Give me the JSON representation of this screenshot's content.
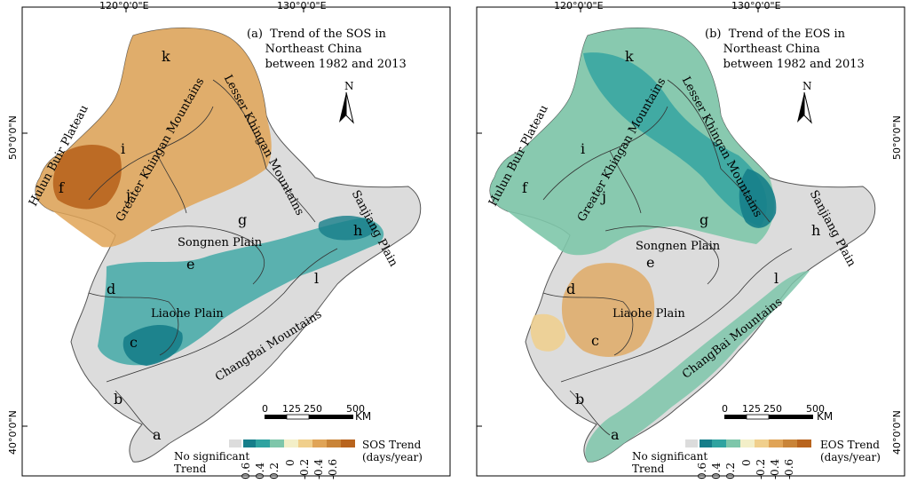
{
  "colors": {
    "no_trend": "#dcdcdc",
    "neg06": "#167e8a",
    "neg04": "#2fa3a0",
    "neg02": "#7ec6aa",
    "zero": "#f3efc8",
    "pos02": "#f0cf8c",
    "pos04": "#e0a457",
    "pos06": "#b8641e"
  },
  "panels": [
    {
      "title": "(a)  Trend of the SOS in\n     Northeast China\n     between 1982 and 2013",
      "variable": "SOS",
      "legend_title": "SOS Trend\n(days/year)",
      "legend_ticks": [
        "0.6",
        "0.4",
        "0.2",
        "0",
        "-0.2",
        "-0.4",
        "-0.6"
      ],
      "no_trend_label": "No significant\nTrend"
    },
    {
      "title": "(b)  Trend of the EOS in\n     Northeast China\n     between 1982 and 2013",
      "variable": "EOS",
      "legend_title": "EOS Trend\n(days/year)",
      "legend_ticks": [
        "0.6",
        "0.4",
        "0.2",
        "0",
        "-0.2",
        "-0.4",
        "-0.6"
      ],
      "no_trend_label": "No significant\nTrend"
    }
  ],
  "coords": {
    "lon_labels": [
      "120°0'0\"E",
      "130°0'0\"E"
    ],
    "lat_labels": [
      "50°0'0\"N",
      "40°0'0\"N"
    ]
  },
  "north_arrow": "N",
  "scale_bar": {
    "ticks": [
      "0",
      "125",
      "250",
      "500"
    ],
    "unit": "KM"
  },
  "regions": {
    "letters": [
      "a",
      "b",
      "c",
      "d",
      "e",
      "f",
      "g",
      "h",
      "i",
      "j",
      "k",
      "l"
    ],
    "hulun_buir": "Hulun Buir Plateau",
    "greater_khingan": "Greater Khingan Mountains",
    "lesser_khingan": "Lesser Khingan Mountains",
    "sanjiang": "Sanjiang Plain",
    "songnen": "Songnen Plain",
    "liaohe": "Liaohe Plain",
    "changbai": "ChangBai Mountains"
  }
}
